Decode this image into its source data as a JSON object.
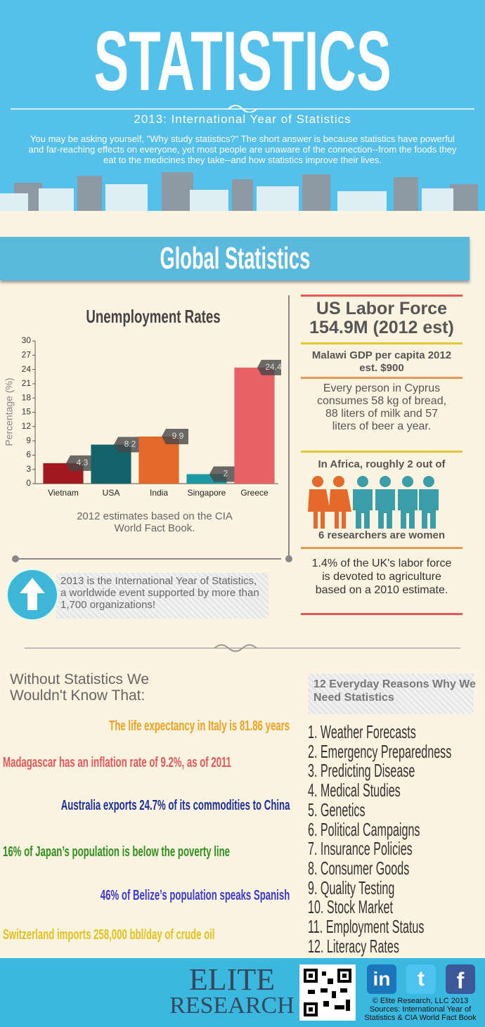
{
  "header": {
    "title": "STATISTICS",
    "subtitle": "2013: International Year of Statistics",
    "intro": "You may be asking yourself, \"Why study statistics?\" The short answer is because statistics have powerful and far-reaching effects on everyone, yet most people are unaware of the connection--from the foods they eat to the medicines they take--and how statistics improve their lives."
  },
  "section_title": "Global Statistics",
  "chart_data": {
    "type": "bar",
    "title": "Unemployment Rates",
    "y_label": "Percentage (%)",
    "categories": [
      "Vietnam",
      "USA",
      "India",
      "Singapore",
      "Greece"
    ],
    "values": [
      4.3,
      8.2,
      9.9,
      2,
      24.4
    ],
    "colors": [
      "#a3191f",
      "#14636b",
      "#e2692a",
      "#1b9aa6",
      "#e86165"
    ],
    "ylim": [
      0,
      30
    ],
    "yticks": [
      0,
      3,
      6,
      9,
      12,
      15,
      18,
      21,
      24,
      27,
      30
    ],
    "note": "2012 estimates based on the CIA World Fact Book."
  },
  "callout": "2013 is the International Year of Statistics, a worldwide event supported by more than 1,700 organizations!",
  "facts_panel": {
    "labor_title": "US Labor Force",
    "labor_value": "154.9M (2012 est)",
    "malawi": "Malawi GDP per capita 2012 est. $900",
    "cyprus": "Every person in Cyprus consumes 58 kg of bread, 88 liters of milk and 57 liters of beer a year.",
    "africa_top": "In Africa, roughly 2 out of",
    "africa_bottom": "6 researchers are women",
    "uk": "1.4% of the UK's labor force is devoted to agriculture based on a 2010 estimate."
  },
  "without": {
    "heading": "Without Statistics We Wouldn't Know That:",
    "facts": [
      {
        "text": "The life expectancy in Italy  is 81.86 years",
        "color": "#f0a020"
      },
      {
        "text": "Madagascar has an inflation rate of 9.2%, as of 2011",
        "color": "#e8575a"
      },
      {
        "text": "Australia exports 24.7% of its commodities to China",
        "color": "#1a2f9a"
      },
      {
        "text": "16% of Japan’s population is below the poverty line",
        "color": "#2f8f1f"
      },
      {
        "text": "46% of Belize’s population speaks Spanish",
        "color": "#3a3ad0"
      },
      {
        "text": "Switzerland imports 258,000 bbl/day of crude oil",
        "color": "#e3c21e"
      }
    ]
  },
  "reasons": {
    "heading": "12 Everyday Reasons Why We Need Statistics",
    "items": [
      "1. Weather Forecasts",
      "2. Emergency Preparedness",
      "3. Predicting Disease",
      "4. Medical Studies",
      "5. Genetics",
      "6. Political Campaigns",
      "7. Insurance Policies",
      "8. Consumer Goods",
      "9. Quality Testing",
      "10. Stock Market",
      "11. Employment Status",
      "12. Literacy Rates"
    ]
  },
  "footer": {
    "logo_top": "ELITE",
    "logo_bottom": "RESEARCH",
    "social": [
      "in",
      "t",
      "f"
    ],
    "copyright": "© Elite Research, LLC 2013",
    "sources": "Sources: International Year of Statistics & CIA World Fact Book"
  }
}
